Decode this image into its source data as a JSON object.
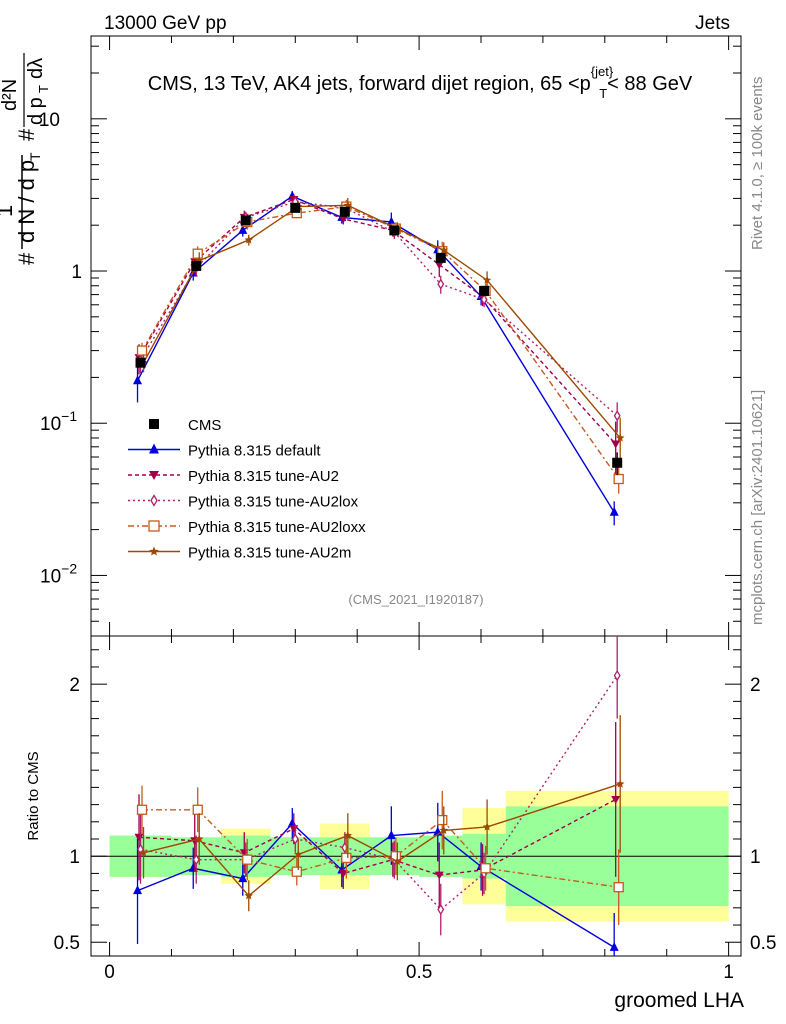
{
  "header": {
    "energy_label": "13000 GeV pp",
    "category_label": "Jets"
  },
  "side_labels": {
    "rivet": "Rivet 4.1.0, ≥ 100k events",
    "source": "mcplots.cern.ch [arXiv:2401.10621]"
  },
  "chart_data": {
    "type": "line",
    "title": "CMS, 13 TeV, AK4 jets, forward dijet region, 65 <p_T^{jet}< 88 GeV",
    "title_prefix": "CMS, 13 TeV, AK4 jets, forward dijet region, 65 <p",
    "title_sup": "{jet}",
    "title_sub": "T",
    "title_suffix": "< 88 GeV",
    "analysis_id": "(CMS_2021_I1920187)",
    "xlabel": "groomed LHA",
    "ylabel_main": "1/(dN/dp_T) d²N/(dp_T dλ)",
    "ylabel_ratio": "Ratio to CMS",
    "xlim": [
      -0.03,
      1.02
    ],
    "main_ylim": [
      0.004,
      35
    ],
    "main_yscale": "log",
    "ratio_ylim": [
      0.42,
      2.28
    ],
    "x_ticks": [
      0,
      0.5,
      1
    ],
    "x_tick_labels": [
      "0",
      "0.5",
      "1"
    ],
    "main_y_ticks": [
      0.01,
      0.1,
      1,
      10
    ],
    "main_y_tick_labels": [
      {
        "base": "10",
        "exp": "−2"
      },
      {
        "base": "10",
        "exp": "−1"
      },
      {
        "base": "1",
        "exp": ""
      },
      {
        "base": "10",
        "exp": ""
      }
    ],
    "ratio_y_ticks": [
      0.5,
      1,
      2
    ],
    "ratio_y_tick_labels": [
      "0.5",
      "1",
      "2"
    ],
    "bins": [
      [
        0.0,
        0.1
      ],
      [
        0.1,
        0.18
      ],
      [
        0.18,
        0.26
      ],
      [
        0.26,
        0.34
      ],
      [
        0.34,
        0.42
      ],
      [
        0.42,
        0.5
      ],
      [
        0.5,
        0.57
      ],
      [
        0.57,
        0.64
      ],
      [
        0.64,
        1.0
      ]
    ],
    "x": [
      0.05,
      0.14,
      0.22,
      0.3,
      0.38,
      0.46,
      0.535,
      0.605,
      0.82
    ],
    "data": {
      "name": "CMS",
      "values": [
        0.25,
        1.08,
        2.15,
        2.6,
        2.45,
        1.85,
        1.22,
        0.74,
        0.055
      ],
      "err_rel_stat": [
        0.06,
        0.05,
        0.06,
        0.05,
        0.05,
        0.05,
        0.06,
        0.07,
        0.17
      ],
      "err_rel_total": [
        0.12,
        0.09,
        0.16,
        0.08,
        0.19,
        0.09,
        0.09,
        0.28,
        0.38
      ]
    },
    "series": [
      {
        "name": "Pythia 8.315 default",
        "color": "#0000dd",
        "dash": "",
        "marker": "triangle-up",
        "values": [
          0.19,
          0.97,
          1.85,
          3.1,
          2.25,
          2.1,
          1.38,
          0.68,
          0.026
        ],
        "ratio": [
          0.8,
          0.93,
          0.87,
          1.19,
          0.92,
          1.12,
          1.14,
          0.94,
          0.47
        ],
        "ratio_err": [
          0.31,
          0.12,
          0.1,
          0.09,
          0.1,
          0.17,
          0.17,
          0.14,
          0.2
        ]
      },
      {
        "name": "Pythia 8.315 tune-AU2",
        "color": "#a0004a",
        "dash": "4,3",
        "marker": "triangle-down",
        "values": [
          0.27,
          1.15,
          2.25,
          2.95,
          2.2,
          1.85,
          1.1,
          0.68,
          0.073
        ],
        "ratio": [
          1.11,
          1.09,
          1.02,
          1.16,
          0.9,
          0.98,
          0.89,
          0.92,
          1.33
        ],
        "ratio_err": [
          0.25,
          0.18,
          0.12,
          0.09,
          0.09,
          0.1,
          0.19,
          0.15,
          0.45
        ]
      },
      {
        "name": "Pythia 8.315 tune-AU2lox",
        "color": "#b0206c",
        "dash": "2,3",
        "marker": "diamond-open",
        "values": [
          0.26,
          1.05,
          2.25,
          2.85,
          2.6,
          1.8,
          0.82,
          0.65,
          0.112
        ],
        "ratio": [
          1.04,
          0.98,
          0.98,
          1.1,
          1.05,
          0.98,
          0.69,
          0.9,
          2.05
        ],
        "ratio_err": [
          0.2,
          0.14,
          0.1,
          0.08,
          0.09,
          0.11,
          0.15,
          0.12,
          0.25
        ]
      },
      {
        "name": "Pythia 8.315 tune-AU2loxx",
        "color": "#c65a1e",
        "dash": "6,3,2,3",
        "marker": "square-open",
        "values": [
          0.3,
          1.3,
          2.1,
          2.4,
          2.65,
          1.9,
          1.35,
          0.74,
          0.043
        ],
        "ratio": [
          1.27,
          1.27,
          0.98,
          0.91,
          0.99,
          1.0,
          1.21,
          0.93,
          0.82
        ],
        "ratio_err": [
          0.14,
          0.13,
          0.12,
          0.08,
          0.12,
          0.11,
          0.17,
          0.13,
          0.22
        ]
      },
      {
        "name": "Pythia 8.315 tune-AU2m",
        "color": "#9c4a00",
        "dash": "",
        "marker": "star",
        "values": [
          0.25,
          1.17,
          1.6,
          2.65,
          2.7,
          1.9,
          1.37,
          0.87,
          0.08
        ],
        "ratio": [
          1.02,
          1.1,
          0.77,
          1.01,
          1.12,
          0.97,
          1.15,
          1.17,
          1.42
        ],
        "ratio_err": [
          0.15,
          0.15,
          0.09,
          0.09,
          0.13,
          0.11,
          0.14,
          0.16,
          0.4
        ]
      }
    ],
    "legend_placement": "bottom-left of main panel"
  }
}
